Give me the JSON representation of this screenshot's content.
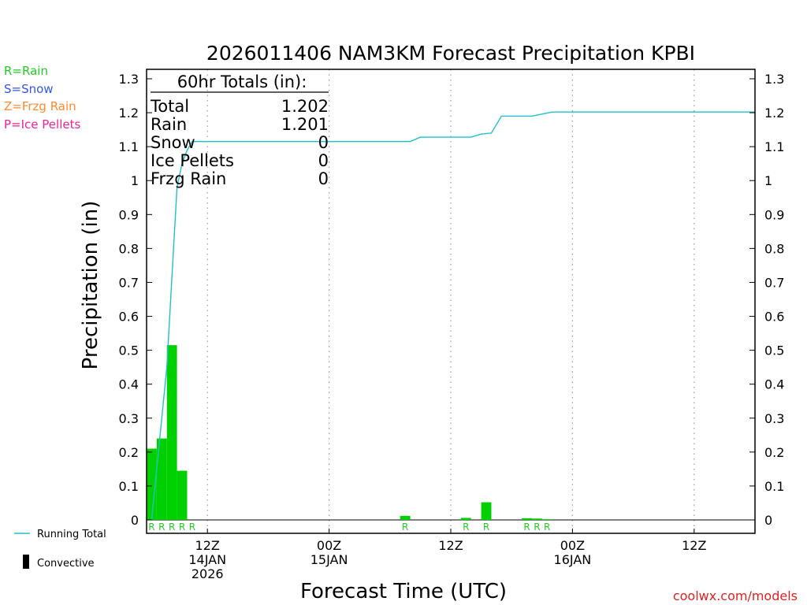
{
  "chart_data": {
    "type": "bar",
    "title": "2026011406 NAM3KM Forecast Precipitation KPBI",
    "xlabel": "Forecast Time (UTC)",
    "ylabel": "Precipitation (in)",
    "ylim": [
      0,
      1.3
    ],
    "yticks": [
      0,
      0.1,
      0.2,
      0.3,
      0.4,
      0.5,
      0.6,
      0.7,
      0.8,
      0.9,
      1,
      1.1,
      1.2,
      1.3
    ],
    "yticklabels": [
      "0",
      "0.1",
      "0.2",
      "0.3",
      "0.4",
      "0.5",
      "0.6",
      "0.7",
      "0.8",
      "0.9",
      "1",
      "1.1",
      "1.2",
      "1.3"
    ],
    "xlim_hours": [
      0,
      60
    ],
    "xgridlines_hours": [
      6,
      18,
      30,
      42,
      54
    ],
    "xticks": [
      {
        "hour": 6,
        "lines": [
          "12Z",
          "14JAN",
          "2026"
        ]
      },
      {
        "hour": 18,
        "lines": [
          "00Z",
          "15JAN"
        ]
      },
      {
        "hour": 30,
        "lines": [
          "12Z"
        ]
      },
      {
        "hour": 42,
        "lines": [
          "00Z",
          "16JAN"
        ]
      },
      {
        "hour": 54,
        "lines": [
          "12Z"
        ]
      }
    ],
    "hourly_precip": [
      {
        "hour": 1,
        "value": 0.21,
        "type": "R"
      },
      {
        "hour": 2,
        "value": 0.24,
        "type": "R"
      },
      {
        "hour": 3,
        "value": 0.515,
        "type": "R"
      },
      {
        "hour": 4,
        "value": 0.145,
        "type": "R"
      },
      {
        "hour": 5,
        "value": 0.0,
        "type": "R"
      },
      {
        "hour": 26,
        "value": 0.012,
        "type": "R"
      },
      {
        "hour": 32,
        "value": 0.006,
        "type": "R"
      },
      {
        "hour": 34,
        "value": 0.052,
        "type": "R"
      },
      {
        "hour": 38,
        "value": 0.005,
        "type": "R"
      },
      {
        "hour": 39,
        "value": 0.004,
        "type": "R"
      },
      {
        "hour": 40,
        "value": 0.002,
        "type": "R"
      }
    ],
    "running_total": {
      "hours": [
        0.5,
        2,
        3,
        3.5,
        4,
        4.5,
        5,
        6,
        10,
        18,
        26,
        27,
        32,
        33,
        34,
        35,
        38,
        40,
        60
      ],
      "values": [
        0,
        0.45,
        0.98,
        1.05,
        1.09,
        1.115,
        1.115,
        1.115,
        1.115,
        1.115,
        1.115,
        1.128,
        1.128,
        1.137,
        1.14,
        1.19,
        1.19,
        1.202,
        1.202
      ]
    },
    "totals": {
      "header": "60hr Totals (in):",
      "rows": [
        {
          "label": "Total",
          "value": "1.202"
        },
        {
          "label": "Rain",
          "value": "1.201"
        },
        {
          "label": "Snow",
          "value": "0"
        },
        {
          "label": "Ice Pellets",
          "value": "0"
        },
        {
          "label": "Frzg Rain",
          "value": "0"
        }
      ]
    },
    "type_key": [
      {
        "text": "R=Rain",
        "color": "#22cc22"
      },
      {
        "text": "S=Snow",
        "color": "#3355ee"
      },
      {
        "text": "Z=Frzg Rain",
        "color": "#ff8833"
      },
      {
        "text": "P=Ice Pellets",
        "color": "#ee2299"
      }
    ],
    "legend": [
      {
        "text": "Running Total",
        "kind": "line",
        "color": "#20c0c8"
      },
      {
        "text": "Convective",
        "kind": "bar",
        "color": "#000000"
      }
    ],
    "bar_color": "#00d000",
    "line_color": "#20c0c8",
    "credit": "coolwx.com/models",
    "credit_color": "#dd2222"
  }
}
